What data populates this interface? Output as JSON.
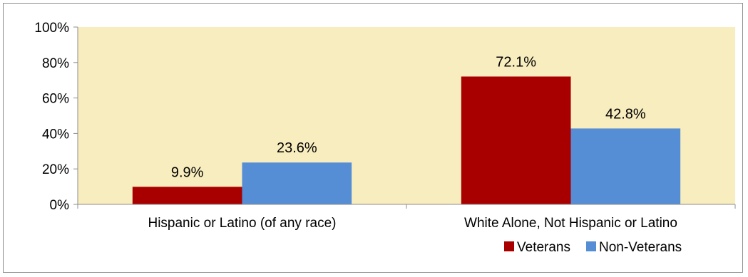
{
  "chart_data": {
    "type": "bar",
    "categories": [
      "Hispanic or Latino (of any race)",
      "White Alone, Not Hispanic or Latino"
    ],
    "series": [
      {
        "name": "Veterans",
        "values": [
          9.9,
          72.1
        ],
        "labels": [
          "9.9%",
          "72.1%"
        ],
        "color": "#a80000"
      },
      {
        "name": "Non-Veterans",
        "values": [
          23.6,
          42.8
        ],
        "labels": [
          "23.6%",
          "42.8%"
        ],
        "color": "#558ed5"
      }
    ],
    "ylim": [
      0,
      100
    ],
    "yticks": [
      0,
      20,
      40,
      60,
      80,
      100
    ],
    "ytick_labels": [
      "0%",
      "20%",
      "40%",
      "60%",
      "80%",
      "100%"
    ],
    "plot_background": "#f8edbe",
    "grid": false,
    "legend_position": "bottom-right",
    "title": "",
    "xlabel": "",
    "ylabel": ""
  }
}
